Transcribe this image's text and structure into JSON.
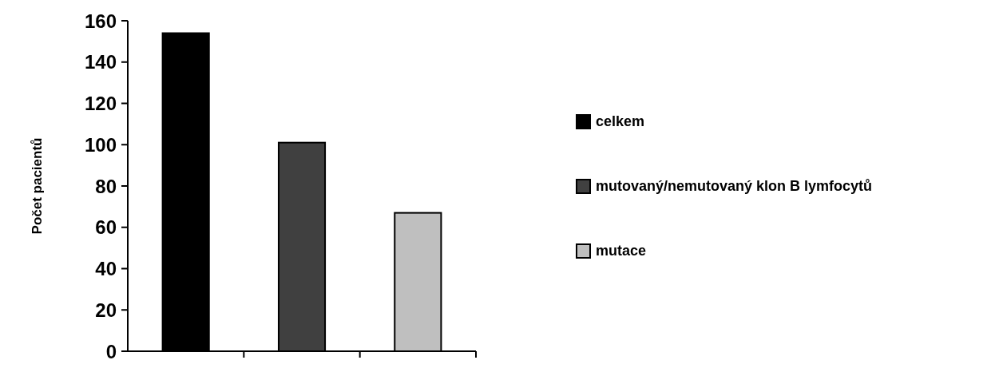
{
  "chart_data": {
    "type": "bar",
    "ylabel": "Počet pacientů",
    "categories": [
      null,
      null,
      null
    ],
    "series": [
      {
        "name": "celkem",
        "color": "#000000",
        "values": [
          154,
          null,
          null
        ]
      },
      {
        "name": "mutovaný/nemutovaný klon B lymfocytů",
        "color": "#404040",
        "values": [
          null,
          101,
          null
        ]
      },
      {
        "name": "mutace",
        "color": "#bfbfbf",
        "values": [
          null,
          null,
          67
        ]
      }
    ],
    "ylim": [
      0,
      160
    ],
    "yticks": [
      0,
      20,
      40,
      60,
      80,
      100,
      120,
      140,
      160
    ],
    "grid": false,
    "legend": "right"
  }
}
